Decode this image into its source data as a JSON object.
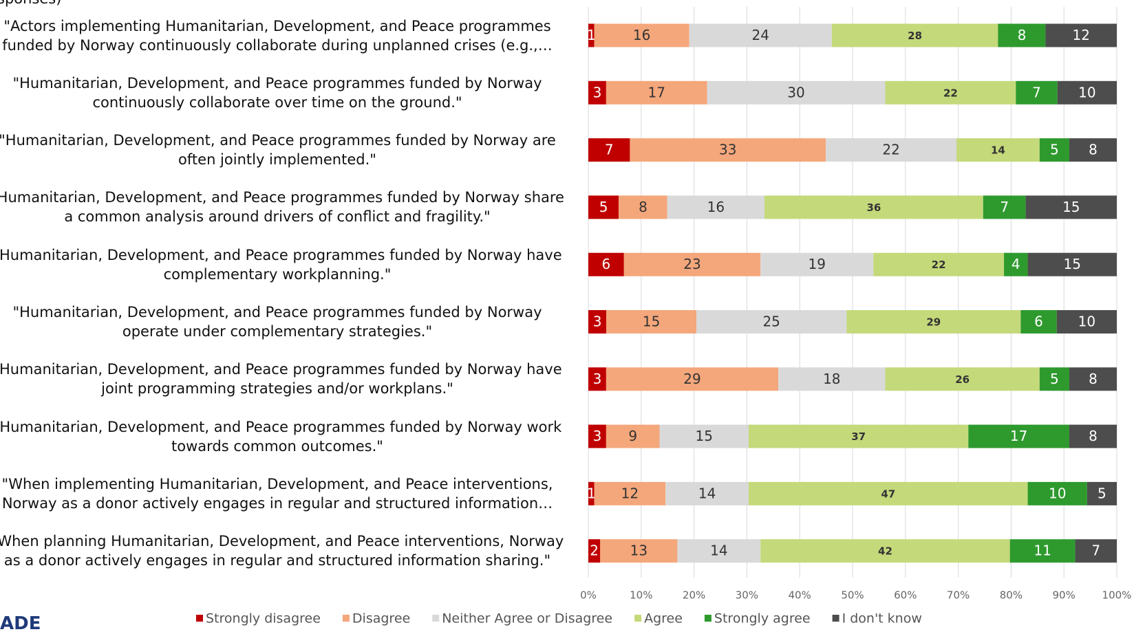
{
  "subtitle": "sponses)",
  "logo": "ADE",
  "chart_data": {
    "type": "stacked_bar_100",
    "orientation": "horizontal",
    "categories": [
      "\"Actors implementing Humanitarian, Development, and Peace programmes\nfunded by Norway continuously collaborate during unplanned crises (e.g.,…",
      "\"Humanitarian, Development, and Peace programmes funded by Norway\ncontinuously collaborate over time on the ground.\"",
      "\"Humanitarian, Development, and Peace programmes funded by Norway are\noften jointly implemented.\"",
      "\"Humanitarian, Development, and Peace programmes funded by Norway share\na common analysis around drivers of conflict and fragility.\"",
      "\"Humanitarian, Development, and Peace programmes funded by Norway have\ncomplementary workplanning.\"",
      "\"Humanitarian, Development, and Peace programmes funded by Norway\noperate under complementary strategies.\"",
      "\"Humanitarian, Development, and Peace programmes funded by Norway have\njoint programming strategies and/or workplans.\"",
      "\"Humanitarian, Development, and Peace programmes funded by Norway work\ntowards common outcomes.\"",
      "\"When implementing Humanitarian, Development, and Peace interventions,\nNorway as a donor actively engages in regular and structured information…",
      "\"When planning Humanitarian, Development, and Peace interventions, Norway\nas a donor actively engages in regular and structured information sharing.\""
    ],
    "series": [
      {
        "name": "Strongly disagree",
        "color": "#c00000",
        "values": [
          1,
          3,
          7,
          5,
          6,
          3,
          3,
          3,
          1,
          2
        ]
      },
      {
        "name": "Disagree",
        "color": "#f4a77b",
        "values": [
          16,
          17,
          33,
          8,
          23,
          15,
          29,
          9,
          12,
          13
        ]
      },
      {
        "name": "Neither Agree or Disagree",
        "color": "#d9d9d9",
        "values": [
          24,
          30,
          22,
          16,
          19,
          25,
          18,
          15,
          14,
          14
        ]
      },
      {
        "name": "Agree",
        "color": "#c4d97a",
        "values": [
          28,
          22,
          14,
          36,
          22,
          29,
          26,
          37,
          47,
          42
        ]
      },
      {
        "name": "Strongly agree",
        "color": "#2e9a2e",
        "values": [
          8,
          7,
          5,
          7,
          4,
          6,
          5,
          17,
          10,
          11
        ]
      },
      {
        "name": "I don't know",
        "color": "#4d4d4d",
        "values": [
          12,
          10,
          8,
          15,
          15,
          10,
          8,
          8,
          5,
          7
        ]
      }
    ],
    "xlim": [
      0,
      100
    ],
    "xticks": [
      {
        "value": 0,
        "label": "0%"
      },
      {
        "value": 10,
        "label": "10%"
      },
      {
        "value": 20,
        "label": "20%"
      },
      {
        "value": 30,
        "label": "30%"
      },
      {
        "value": 40,
        "label": "40%"
      },
      {
        "value": 50,
        "label": "50%"
      },
      {
        "value": 60,
        "label": "60%"
      },
      {
        "value": 70,
        "label": "70%"
      },
      {
        "value": 80,
        "label": "80%"
      },
      {
        "value": 90,
        "label": "90%"
      },
      {
        "value": 100,
        "label": "100%"
      }
    ],
    "grid": true,
    "legend": "bottom"
  }
}
